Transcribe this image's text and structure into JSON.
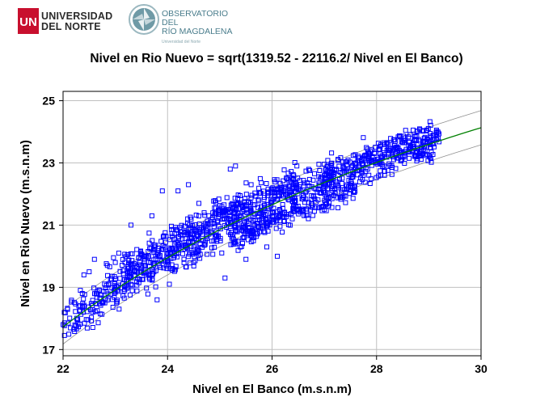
{
  "header": {
    "university": {
      "line1": "UNIVERSIDAD",
      "line2": "DEL NORTE",
      "mark": "UN"
    },
    "observatory": {
      "line1": "OBSERVATORIO DEL",
      "line2": "RÍO MAGDALENA",
      "sub": "Universidad del Norte"
    }
  },
  "colors": {
    "points": "#0000ff",
    "fit": "#008000",
    "bounds": "#909090",
    "grid": "#c0c0c0",
    "un_red": "#c8102e",
    "obs_teal": "#4a7d8c"
  },
  "chart_data": {
    "type": "scatter",
    "title": "Nivel en Rio Nuevo = sqrt(1319.52 - 22116.2/ Nivel en El Banco)",
    "xlabel": "Nivel en El Banco (m.s.n.m)",
    "ylabel": "Nivel en Rio Nuevo (m.s.n.m)",
    "xlim": [
      22,
      30
    ],
    "ylim": [
      16.8,
      25.3
    ],
    "xticks": [
      22,
      24,
      26,
      28,
      30
    ],
    "yticks": [
      17,
      19,
      21,
      23,
      25
    ],
    "grid": true,
    "model": {
      "a": 1319.52,
      "b": 22116.2
    },
    "prediction_band_halfwidth": 0.55,
    "fit_x_range": [
      22.0,
      30.0
    ],
    "series": [
      {
        "marker": "open-square",
        "clusters": [
          {
            "x0": 22.0,
            "x1": 29.2,
            "scatter": 0.34,
            "n": 700
          },
          {
            "x0": 22.8,
            "x1": 24.0,
            "scatter": 0.3,
            "n": 120,
            "offset": 0.35
          },
          {
            "x0": 24.0,
            "x1": 26.5,
            "scatter": 0.25,
            "n": 220,
            "offset": 0.45
          },
          {
            "x0": 25.2,
            "x1": 27.6,
            "scatter": 0.18,
            "n": 200,
            "offset": -0.55
          },
          {
            "x0": 27.0,
            "x1": 29.2,
            "scatter": 0.2,
            "n": 160,
            "offset": 0.2
          }
        ],
        "points": [
          [
            23.9,
            22.1
          ],
          [
            24.2,
            22.1
          ],
          [
            24.6,
            21.7
          ],
          [
            25.3,
            22.9
          ],
          [
            25.2,
            22.8
          ],
          [
            22.6,
            19.9
          ],
          [
            22.5,
            19.5
          ],
          [
            22.4,
            19.4
          ],
          [
            23.0,
            19.8
          ],
          [
            23.6,
            19.4
          ],
          [
            23.8,
            18.6
          ],
          [
            24.5,
            19.8
          ],
          [
            25.1,
            19.3
          ],
          [
            25.5,
            19.9
          ],
          [
            26.1,
            20.0
          ],
          [
            27.0,
            21.5
          ],
          [
            27.3,
            21.9
          ],
          [
            22.1,
            17.85
          ],
          [
            22.0,
            17.8
          ],
          [
            22.3,
            18.4
          ],
          [
            24.4,
            22.3
          ],
          [
            23.3,
            21.0
          ],
          [
            23.7,
            21.3
          ],
          [
            22.8,
            18.5
          ],
          [
            25.9,
            20.3
          ]
        ]
      }
    ]
  }
}
